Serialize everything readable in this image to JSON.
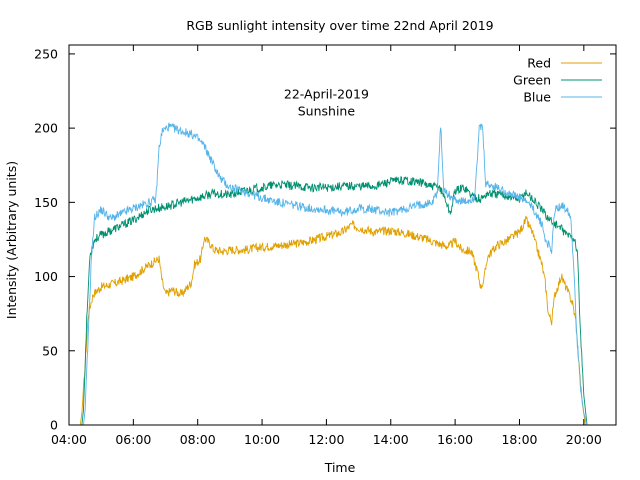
{
  "chart_data": {
    "type": "line",
    "title": "RGB sunlight intensity over time 22nd April 2019",
    "xlabel": "Time",
    "ylabel": "Intensity (Arbitrary units)",
    "annotation": {
      "line1": "22-April-2019",
      "line2": "Sunshine",
      "x": 12.0,
      "y": 220
    },
    "xlim": [
      4.0,
      21.0
    ],
    "ylim": [
      0,
      256
    ],
    "x_ticks": [
      {
        "value": 4,
        "label": "04:00"
      },
      {
        "value": 6,
        "label": "06:00"
      },
      {
        "value": 8,
        "label": "08:00"
      },
      {
        "value": 10,
        "label": "10:00"
      },
      {
        "value": 12,
        "label": "12:00"
      },
      {
        "value": 14,
        "label": "14:00"
      },
      {
        "value": 16,
        "label": "16:00"
      },
      {
        "value": 18,
        "label": "18:00"
      },
      {
        "value": 20,
        "label": "20:00"
      }
    ],
    "y_ticks": [
      {
        "value": 0,
        "label": "0"
      },
      {
        "value": 50,
        "label": "50"
      },
      {
        "value": 100,
        "label": "100"
      },
      {
        "value": 150,
        "label": "150"
      },
      {
        "value": 200,
        "label": "200"
      },
      {
        "value": 250,
        "label": "250"
      }
    ],
    "legend_position": "top-right",
    "series": [
      {
        "name": "Red",
        "color": "#e0a000",
        "points": [
          [
            4.35,
            0
          ],
          [
            4.4,
            8
          ],
          [
            4.5,
            40
          ],
          [
            4.6,
            75
          ],
          [
            4.75,
            88
          ],
          [
            5.0,
            93
          ],
          [
            5.5,
            96
          ],
          [
            6.0,
            100
          ],
          [
            6.5,
            108
          ],
          [
            6.8,
            112
          ],
          [
            6.9,
            96
          ],
          [
            7.0,
            88
          ],
          [
            7.2,
            91
          ],
          [
            7.5,
            88
          ],
          [
            7.8,
            96
          ],
          [
            7.9,
            108
          ],
          [
            8.0,
            110
          ],
          [
            8.1,
            112
          ],
          [
            8.2,
            126
          ],
          [
            8.4,
            122
          ],
          [
            8.5,
            118
          ],
          [
            8.8,
            117
          ],
          [
            9.0,
            118
          ],
          [
            9.5,
            118
          ],
          [
            10.0,
            120
          ],
          [
            10.5,
            121
          ],
          [
            11.0,
            122
          ],
          [
            11.5,
            124
          ],
          [
            12.0,
            127
          ],
          [
            12.5,
            130
          ],
          [
            12.8,
            135
          ],
          [
            13.0,
            133
          ],
          [
            13.5,
            130
          ],
          [
            14.0,
            131
          ],
          [
            14.5,
            129
          ],
          [
            15.0,
            126
          ],
          [
            15.5,
            122
          ],
          [
            15.8,
            120
          ],
          [
            16.0,
            124
          ],
          [
            16.2,
            118
          ],
          [
            16.5,
            117
          ],
          [
            16.7,
            103
          ],
          [
            16.8,
            93
          ],
          [
            16.9,
            98
          ],
          [
            17.0,
            113
          ],
          [
            17.3,
            121
          ],
          [
            17.6,
            124
          ],
          [
            18.0,
            130
          ],
          [
            18.2,
            138
          ],
          [
            18.4,
            130
          ],
          [
            18.5,
            122
          ],
          [
            18.7,
            108
          ],
          [
            18.8,
            96
          ],
          [
            18.9,
            75
          ],
          [
            19.0,
            70
          ],
          [
            19.1,
            88
          ],
          [
            19.3,
            100
          ],
          [
            19.5,
            90
          ],
          [
            19.65,
            82
          ],
          [
            19.75,
            70
          ],
          [
            19.85,
            40
          ],
          [
            19.95,
            15
          ],
          [
            20.05,
            0
          ]
        ]
      },
      {
        "name": "Green",
        "color": "#009070",
        "points": [
          [
            4.4,
            0
          ],
          [
            4.45,
            10
          ],
          [
            4.55,
            70
          ],
          [
            4.65,
            115
          ],
          [
            4.8,
            125
          ],
          [
            5.0,
            128
          ],
          [
            5.5,
            133
          ],
          [
            6.0,
            138
          ],
          [
            6.5,
            145
          ],
          [
            7.0,
            147
          ],
          [
            7.5,
            150
          ],
          [
            8.0,
            153
          ],
          [
            8.5,
            156
          ],
          [
            9.0,
            155
          ],
          [
            9.5,
            158
          ],
          [
            10.0,
            160
          ],
          [
            10.5,
            162
          ],
          [
            11.0,
            161
          ],
          [
            11.5,
            160
          ],
          [
            12.0,
            160
          ],
          [
            12.5,
            161
          ],
          [
            13.0,
            161
          ],
          [
            13.5,
            161
          ],
          [
            14.0,
            164
          ],
          [
            14.5,
            165
          ],
          [
            15.0,
            163
          ],
          [
            15.3,
            160
          ],
          [
            15.5,
            161
          ],
          [
            15.7,
            152
          ],
          [
            15.85,
            142
          ],
          [
            16.0,
            158
          ],
          [
            16.3,
            160
          ],
          [
            16.5,
            155
          ],
          [
            16.8,
            152
          ],
          [
            17.0,
            156
          ],
          [
            17.5,
            155
          ],
          [
            18.0,
            152
          ],
          [
            18.2,
            157
          ],
          [
            18.5,
            150
          ],
          [
            18.8,
            142
          ],
          [
            19.0,
            137
          ],
          [
            19.2,
            134
          ],
          [
            19.5,
            128
          ],
          [
            19.7,
            126
          ],
          [
            19.8,
            116
          ],
          [
            19.9,
            60
          ],
          [
            20.0,
            20
          ],
          [
            20.1,
            0
          ]
        ]
      },
      {
        "name": "Blue",
        "color": "#56b4e9",
        "points": [
          [
            4.45,
            0
          ],
          [
            4.5,
            10
          ],
          [
            4.6,
            60
          ],
          [
            4.7,
            115
          ],
          [
            4.8,
            140
          ],
          [
            5.0,
            145
          ],
          [
            5.3,
            139
          ],
          [
            5.5,
            141
          ],
          [
            6.0,
            146
          ],
          [
            6.5,
            150
          ],
          [
            6.7,
            152
          ],
          [
            6.8,
            187
          ],
          [
            6.9,
            198
          ],
          [
            7.1,
            201
          ],
          [
            7.5,
            198
          ],
          [
            7.8,
            196
          ],
          [
            8.0,
            193
          ],
          [
            8.2,
            188
          ],
          [
            8.5,
            175
          ],
          [
            8.7,
            166
          ],
          [
            9.0,
            160
          ],
          [
            9.5,
            157
          ],
          [
            10.0,
            153
          ],
          [
            10.5,
            150
          ],
          [
            11.0,
            148
          ],
          [
            11.5,
            146
          ],
          [
            12.0,
            145
          ],
          [
            12.5,
            143
          ],
          [
            13.0,
            146
          ],
          [
            13.5,
            145
          ],
          [
            14.0,
            143
          ],
          [
            14.5,
            146
          ],
          [
            15.0,
            149
          ],
          [
            15.3,
            150
          ],
          [
            15.45,
            158
          ],
          [
            15.55,
            202
          ],
          [
            15.65,
            158
          ],
          [
            15.8,
            155
          ],
          [
            16.0,
            152
          ],
          [
            16.3,
            150
          ],
          [
            16.6,
            153
          ],
          [
            16.75,
            199
          ],
          [
            16.85,
            201
          ],
          [
            16.95,
            162
          ],
          [
            17.3,
            160
          ],
          [
            17.6,
            157
          ],
          [
            18.0,
            153
          ],
          [
            18.3,
            149
          ],
          [
            18.5,
            143
          ],
          [
            18.7,
            135
          ],
          [
            18.8,
            125
          ],
          [
            19.0,
            118
          ],
          [
            19.1,
            145
          ],
          [
            19.3,
            148
          ],
          [
            19.5,
            145
          ],
          [
            19.6,
            140
          ],
          [
            19.7,
            100
          ],
          [
            19.8,
            55
          ],
          [
            19.9,
            25
          ],
          [
            20.0,
            8
          ],
          [
            20.1,
            0
          ]
        ]
      }
    ]
  }
}
